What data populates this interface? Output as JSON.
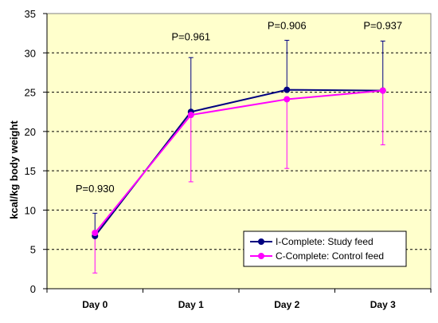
{
  "chart_data": {
    "type": "line",
    "categories": [
      "Day 0",
      "Day 1",
      "Day 2",
      "Day 3"
    ],
    "ylabel": "kcal/kg body weight",
    "xlabel": "",
    "title": "",
    "ylim": [
      0,
      35
    ],
    "yticks": [
      0,
      5,
      10,
      15,
      20,
      25,
      30,
      35
    ],
    "grid": "horizontal dashed",
    "legend_position": "bottom-right",
    "background_color": "#FFFFCC",
    "series": [
      {
        "name": "I-Complete: Study feed",
        "color": "#000080",
        "marker": "circle",
        "values": [
          6.7,
          22.5,
          25.3,
          25.2
        ],
        "error_upper": [
          9.6,
          29.4,
          31.6,
          31.5
        ]
      },
      {
        "name": "C-Complete: Control feed",
        "color": "#FF00FF",
        "marker": "circle",
        "values": [
          7.1,
          22.1,
          24.1,
          25.2
        ],
        "error_lower": [
          2.0,
          13.6,
          15.3,
          18.3
        ]
      }
    ],
    "annotations": [
      {
        "text": "P=0.930",
        "category": "Day 0",
        "y": 12.3
      },
      {
        "text": "P=0.961",
        "category": "Day 1",
        "y": 31.6
      },
      {
        "text": "P=0.906",
        "category": "Day 2",
        "y": 33.0
      },
      {
        "text": "P=0.937",
        "category": "Day 3",
        "y": 33.0
      }
    ]
  }
}
